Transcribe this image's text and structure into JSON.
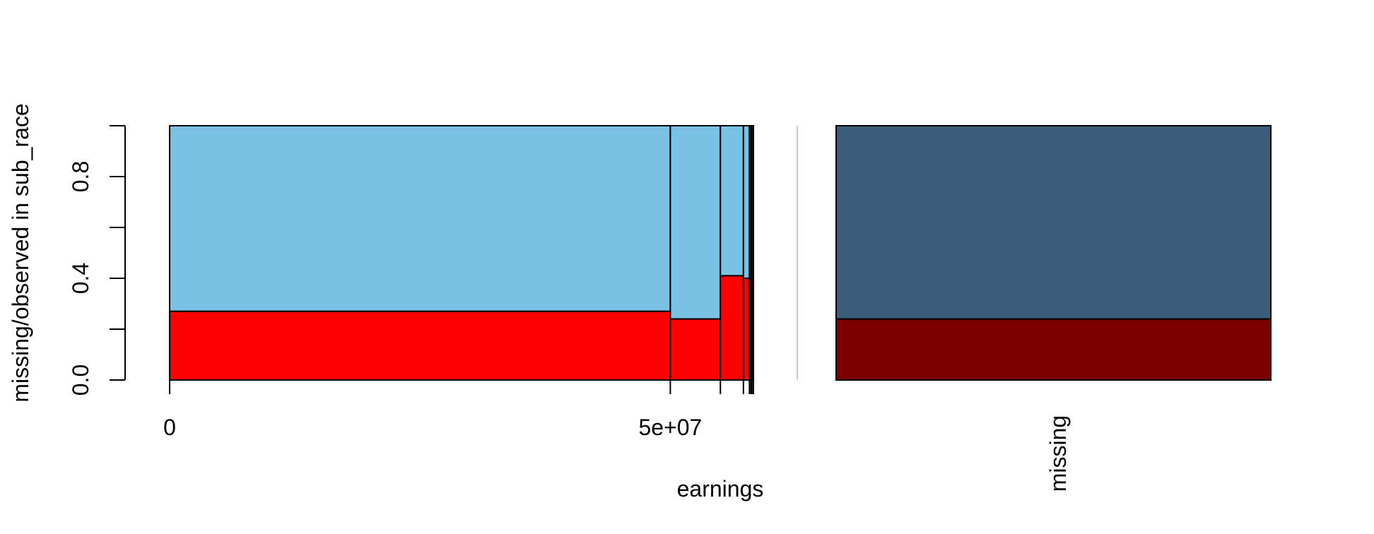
{
  "chart_data": {
    "type": "spinogram",
    "title": "",
    "xlabel": "earnings",
    "ylabel": "missing/observed in sub_race",
    "ylim": [
      0,
      1
    ],
    "yticks": [
      0,
      0.2,
      0.4,
      0.6,
      0.8,
      1.0
    ],
    "ytick_labels": [
      "0.0",
      "",
      "0.4",
      "",
      "0.8",
      ""
    ],
    "xlim": [
      0,
      58300000
    ],
    "xticks": [
      0,
      50000000
    ],
    "xtick_labels": [
      "0",
      "5e+07"
    ],
    "grid": false,
    "legend": "none",
    "colors": {
      "observed": "#7AC2E5",
      "missing": "#FF0000",
      "missing_dark": "#7A0000",
      "observed_dark": "#3A5D7A",
      "border": "#000000",
      "separator": "#C8C8C8"
    },
    "bins": [
      {
        "x0": 0,
        "x1": 50000000,
        "missing_fraction": 0.27
      },
      {
        "x0": 50000000,
        "x1": 55000000,
        "missing_fraction": 0.24
      },
      {
        "x0": 55000000,
        "x1": 57300000,
        "missing_fraction": 0.41
      },
      {
        "x0": 57300000,
        "x1": 57900000,
        "missing_fraction": 0.4
      },
      {
        "x0": 57900000,
        "x1": 58050000,
        "missing_fraction": 0.4
      },
      {
        "x0": 58050000,
        "x1": 58150000,
        "missing_fraction": 0.4
      },
      {
        "x0": 58150000,
        "x1": 58300000,
        "missing_fraction": 0.4
      }
    ],
    "missing_panel": {
      "label": "missing",
      "missing_fraction": 0.24
    }
  }
}
